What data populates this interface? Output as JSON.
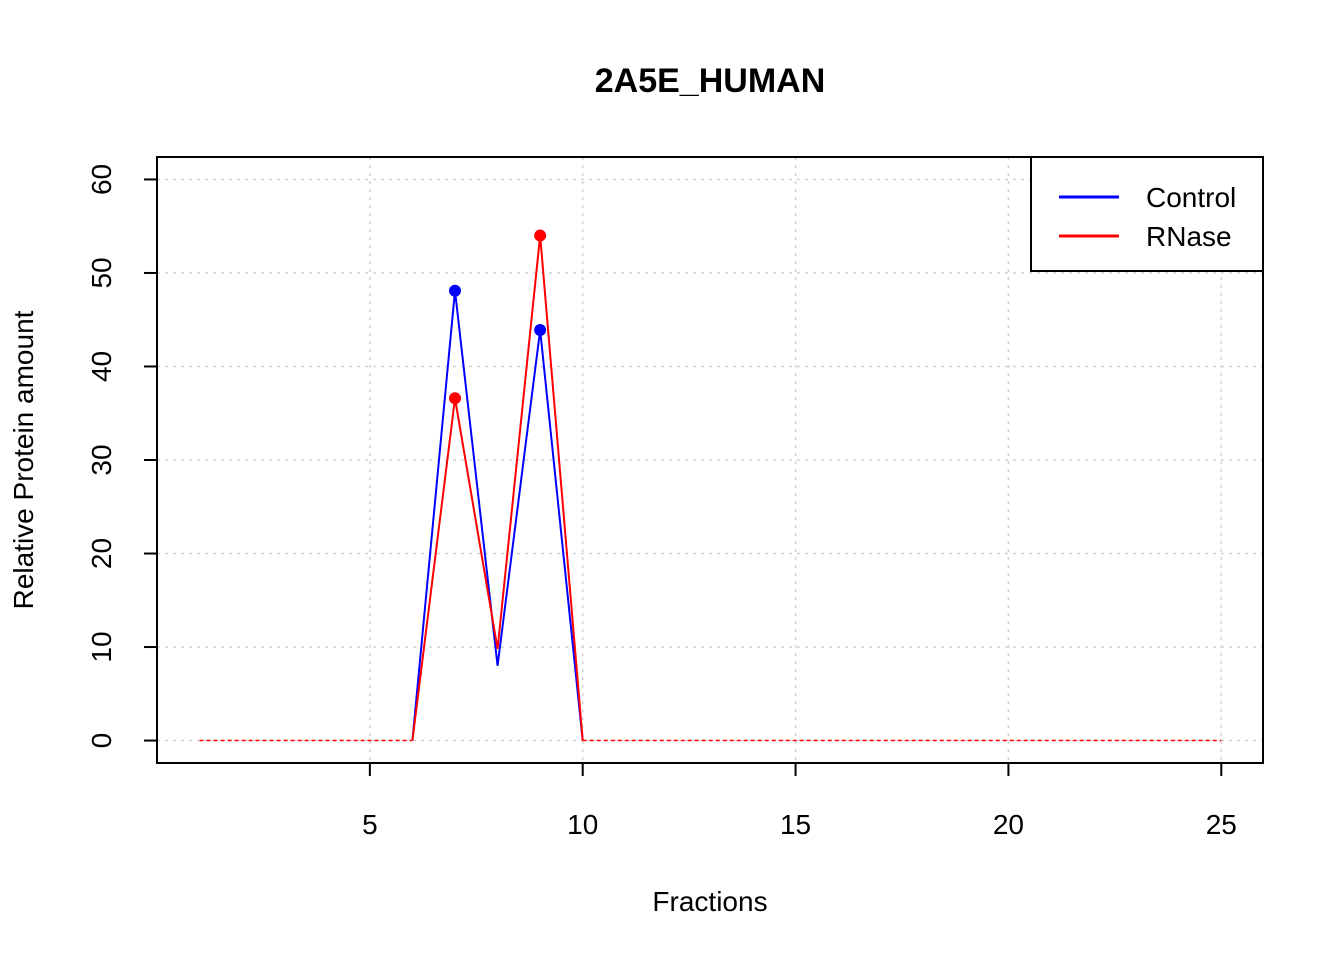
{
  "chart_data": {
    "type": "line",
    "title": "2A5E_HUMAN",
    "xlabel": "Fractions",
    "ylabel": "Relative Protein amount",
    "xlim": [
      0,
      25.98
    ],
    "ylim": [
      -2.4,
      62.4
    ],
    "x_ticks": [
      5,
      10,
      15,
      20,
      25
    ],
    "y_ticks": [
      0,
      10,
      20,
      30,
      40,
      50,
      60
    ],
    "grid": true,
    "legend_position": "top-right",
    "x": [
      1,
      2,
      3,
      4,
      5,
      6,
      7,
      8,
      9,
      10,
      11,
      12,
      13,
      14,
      15,
      16,
      17,
      18,
      19,
      20,
      21,
      22,
      23,
      24,
      25
    ],
    "series": [
      {
        "name": "Control",
        "color": "#0000ff",
        "values": [
          0,
          0,
          0,
          0,
          0,
          0,
          48.1,
          8.0,
          43.9,
          0,
          0,
          0,
          0,
          0,
          0,
          0,
          0,
          0,
          0,
          0,
          0,
          0,
          0,
          0,
          0
        ],
        "markers_at": [
          7,
          9
        ]
      },
      {
        "name": "RNase",
        "color": "#ff0000",
        "values": [
          0,
          0,
          0,
          0,
          0,
          0,
          36.6,
          9.8,
          54.0,
          0,
          0,
          0,
          0,
          0,
          0,
          0,
          0,
          0,
          0,
          0,
          0,
          0,
          0,
          0,
          0
        ],
        "markers_at": [
          7,
          9
        ]
      }
    ]
  }
}
